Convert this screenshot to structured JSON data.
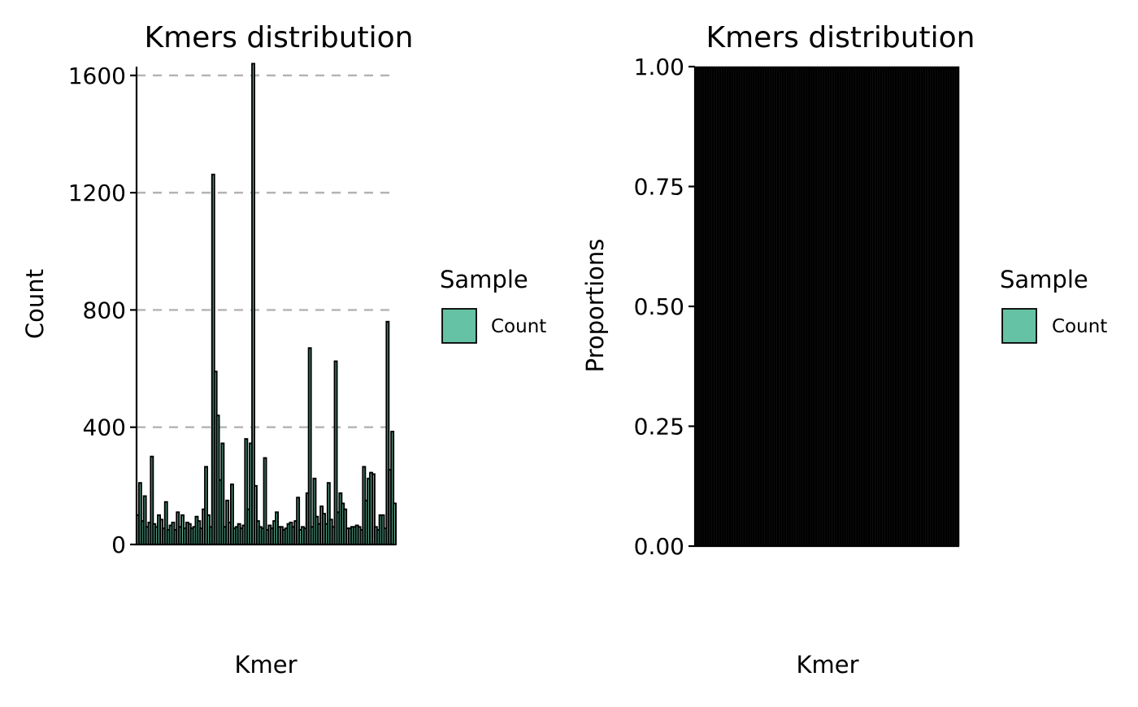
{
  "chart_data": [
    {
      "type": "bar",
      "title": "Kmers distribution",
      "xlabel": "Kmer",
      "ylabel": "Count",
      "ylim": [
        0,
        1630
      ],
      "yticks": [
        0,
        400,
        800,
        1200,
        1600
      ],
      "grid": "horizontal dashed",
      "legend": {
        "title": "Sample",
        "position": "right",
        "entries": [
          {
            "label": "Count",
            "color": "#66C2A5"
          }
        ]
      },
      "series": [
        {
          "name": "Count",
          "values": [
            100,
            210,
            80,
            165,
            60,
            75,
            300,
            70,
            60,
            100,
            85,
            55,
            145,
            50,
            65,
            75,
            50,
            110,
            60,
            100,
            55,
            75,
            70,
            55,
            60,
            95,
            80,
            55,
            120,
            265,
            100,
            60,
            1262,
            590,
            440,
            220,
            345,
            60,
            150,
            75,
            205,
            55,
            60,
            70,
            55,
            65,
            360,
            120,
            345,
            1640,
            200,
            80,
            60,
            55,
            295,
            50,
            65,
            55,
            80,
            110,
            60,
            60,
            50,
            55,
            70,
            75,
            60,
            80,
            160,
            50,
            60,
            55,
            175,
            670,
            60,
            225,
            95,
            70,
            130,
            105,
            70,
            210,
            85,
            60,
            625,
            110,
            175,
            140,
            120,
            55,
            55,
            60,
            60,
            65,
            60,
            50,
            265,
            150,
            225,
            245,
            240,
            60,
            50,
            100,
            100,
            55,
            760,
            255,
            385,
            140
          ]
        }
      ]
    },
    {
      "type": "bar",
      "title": "Kmers distribution",
      "xlabel": "Kmer",
      "ylabel": "Proportions",
      "ylim": [
        0,
        1
      ],
      "yticks": [
        "0.00",
        "0.25",
        "0.50",
        "0.75",
        "1.00"
      ],
      "grid": "none",
      "legend": {
        "title": "Sample",
        "position": "right",
        "entries": [
          {
            "label": "Count",
            "color": "#66C2A5"
          }
        ]
      },
      "series": [
        {
          "name": "Count",
          "values": [
            1.0
          ]
        }
      ]
    }
  ]
}
